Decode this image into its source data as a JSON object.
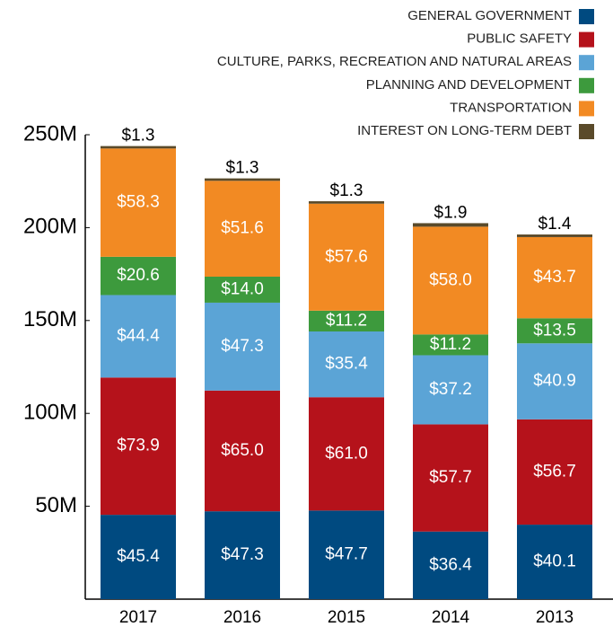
{
  "chart_data": {
    "type": "stacked_bar",
    "categories": [
      "2017",
      "2016",
      "2015",
      "2014",
      "2013"
    ],
    "series": [
      {
        "name": "GENERAL GOVERNMENT",
        "color": "#004a80",
        "values": [
          45.4,
          47.3,
          47.7,
          36.4,
          40.1
        ],
        "value_labels": [
          "$45.4",
          "$47.3",
          "$47.7",
          "$36.4",
          "$40.1"
        ]
      },
      {
        "name": "PUBLIC SAFETY",
        "color": "#b5121b",
        "values": [
          73.9,
          65.0,
          61.0,
          57.7,
          56.7
        ],
        "value_labels": [
          "$73.9",
          "$65.0",
          "$61.0",
          "$57.7",
          "$56.7"
        ]
      },
      {
        "name": "CULTURE, PARKS, RECREATION AND NATURAL AREAS",
        "color": "#5ba4d6",
        "values": [
          44.4,
          47.3,
          35.4,
          37.2,
          40.9
        ],
        "value_labels": [
          "$44.4",
          "$47.3",
          "$35.4",
          "$37.2",
          "$40.9"
        ]
      },
      {
        "name": "PLANNING AND DEVELOPMENT",
        "color": "#3d9a3d",
        "values": [
          20.6,
          14.0,
          11.2,
          11.2,
          13.5
        ],
        "value_labels": [
          "$20.6",
          "$14.0",
          "$11.2",
          "$11.2",
          "$13.5"
        ]
      },
      {
        "name": "TRANSPORTATION",
        "color": "#f28a23",
        "values": [
          58.3,
          51.6,
          57.6,
          58.0,
          43.7
        ],
        "value_labels": [
          "$58.3",
          "$51.6",
          "$57.6",
          "$58.0",
          "$43.7"
        ]
      },
      {
        "name": "INTEREST ON LONG-TERM DEBT",
        "color": "#5a4a2a",
        "values": [
          1.3,
          1.3,
          1.3,
          1.9,
          1.4
        ],
        "value_labels": [
          "$1.3",
          "$1.3",
          "$1.3",
          "$1.9",
          "$1.4"
        ]
      }
    ],
    "ylim": [
      0,
      250
    ],
    "yticks": [
      {
        "value": 50,
        "label": "50M"
      },
      {
        "value": 100,
        "label": "100M"
      },
      {
        "value": 150,
        "label": "150M"
      },
      {
        "value": 200,
        "label": "200M"
      },
      {
        "value": 250,
        "label": "250M"
      }
    ],
    "legend": "top-right"
  }
}
